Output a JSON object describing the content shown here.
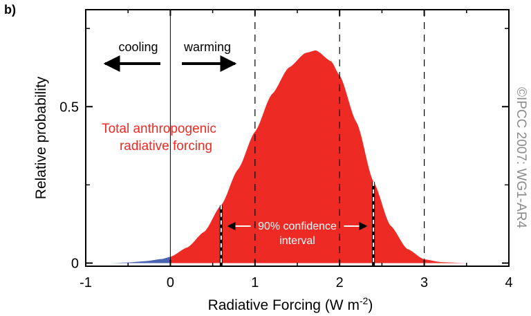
{
  "panel_label": "b)",
  "watermark": "©IPCC 2007: WG1-AR4",
  "labels": {
    "cooling": "cooling",
    "warming": "warming",
    "curve_line1": "Total anthropogenic",
    "curve_line2": "radiative forcing",
    "ci_line1": "90% confidence",
    "ci_line2": "interval"
  },
  "colors": {
    "positive_fill": "#ee2a24",
    "negative_fill": "#4a63b0",
    "text_red": "#ee2a24",
    "axis": "#000000"
  },
  "chart_data": {
    "type": "area",
    "xlabel": "Radiative Forcing  (W m-2)",
    "ylabel": "Relative probability",
    "xlim": [
      -1,
      4
    ],
    "ylim": [
      -0.01,
      0.81
    ],
    "x_ticks": [
      -1,
      0,
      1,
      2,
      3,
      4
    ],
    "y_ticks": [
      0,
      0.5
    ],
    "y_minor_ticks": [
      0.25,
      0.75
    ],
    "dashed_lines_x": [
      1,
      2,
      3
    ],
    "zero_line_x": 0,
    "confidence_interval": [
      0.6,
      2.4
    ],
    "peak": {
      "x": 1.72,
      "y": 0.68
    },
    "series": [
      {
        "x": [
          -0.7,
          -0.5,
          -0.3,
          -0.1,
          0.0,
          0.2,
          0.4,
          0.6,
          0.8,
          1.0,
          1.2,
          1.4,
          1.6,
          1.72,
          1.9,
          2.0,
          2.2,
          2.4,
          2.6,
          2.8,
          3.0,
          3.2,
          3.5
        ],
        "y": [
          0.0,
          0.002,
          0.006,
          0.013,
          0.02,
          0.05,
          0.1,
          0.185,
          0.3,
          0.42,
          0.54,
          0.625,
          0.672,
          0.68,
          0.645,
          0.6,
          0.45,
          0.26,
          0.12,
          0.045,
          0.012,
          0.003,
          0.0
        ]
      }
    ]
  }
}
